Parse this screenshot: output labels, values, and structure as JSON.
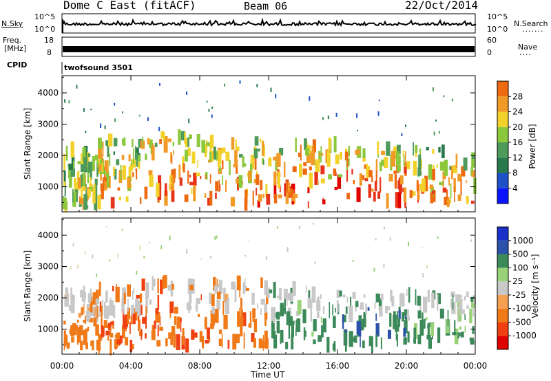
{
  "header": {
    "station": "Dome C East (fitACF)",
    "beam": "Beam 06",
    "date": "22/Oct/2014"
  },
  "status_panels": {
    "nsky_label": "N.Sky",
    "nsearch_label": "N.Search",
    "noise_ticks": [
      "10^5",
      "10^0"
    ],
    "freq_label_line1": "Freq.",
    "freq_label_line2": "[MHz]",
    "freq_ticks": [
      "18",
      "8"
    ],
    "nave_label": "Nave",
    "nave_ticks": [
      "60",
      "0"
    ],
    "cpid_label": "CPID",
    "cpid_text": "twofsound 3501"
  },
  "colors": {
    "power": [
      "#0a14ff",
      "#1e50c8",
      "#287a4c",
      "#4e9a5a",
      "#8cc83c",
      "#f2d22a",
      "#f29a28",
      "#ee6a10",
      "#e6341a",
      "#e00000"
    ],
    "velocity": [
      "#e00000",
      "#f04010",
      "#f07a18",
      "#f4a050",
      "#e8dcb8",
      "#c8c8c8",
      "#9ad27a",
      "#3c8a5a",
      "#2a52aa",
      "#1a30c8"
    ]
  },
  "chart_data": [
    {
      "type": "heatmap",
      "name": "power",
      "xlabel": "",
      "ylabel": "Slant Range [km]",
      "xlim_hours": [
        0,
        24
      ],
      "ylim": [
        200,
        4550
      ],
      "yticks": [
        1000,
        2000,
        3000,
        4000
      ],
      "colorbar": {
        "label": "Power [dB]",
        "range": [
          0,
          32
        ],
        "ticks": [
          "4",
          "8",
          "12",
          "16",
          "20",
          "24",
          "28"
        ]
      },
      "regions": [
        {
          "t": [
            0.0,
            2.0
          ],
          "r": [
            350,
            2200
          ],
          "level": 0.55
        },
        {
          "t": [
            2.0,
            4.5
          ],
          "r": [
            400,
            2500
          ],
          "level": 0.72
        },
        {
          "t": [
            4.5,
            8.5
          ],
          "r": [
            500,
            2700
          ],
          "level": 0.85
        },
        {
          "t": [
            8.5,
            12.0
          ],
          "r": [
            400,
            2500
          ],
          "level": 0.8
        },
        {
          "t": [
            12.0,
            16.0
          ],
          "r": [
            400,
            2400
          ],
          "level": 0.9
        },
        {
          "t": [
            16.0,
            20.0
          ],
          "r": [
            500,
            2300
          ],
          "level": 0.85
        },
        {
          "t": [
            20.0,
            24.0
          ],
          "r": [
            500,
            2300
          ],
          "level": 0.7
        }
      ]
    },
    {
      "type": "heatmap",
      "name": "velocity",
      "xlabel": "Time UT",
      "ylabel": "Slant Range [km]",
      "xlim_hours": [
        0,
        24
      ],
      "ylim": [
        200,
        4550
      ],
      "yticks": [
        1000,
        2000,
        3000,
        4000
      ],
      "xticks": [
        "00:00",
        "04:00",
        "08:00",
        "12:00",
        "16:00",
        "20:00",
        "00:00"
      ],
      "colorbar": {
        "label": "Velocity [m s⁻¹]",
        "ticks": [
          "1000",
          "500",
          "100",
          "25",
          "-25",
          "-100",
          "-500",
          "-1000"
        ]
      },
      "regions": [
        {
          "t": [
            0.0,
            2.0
          ],
          "r": [
            350,
            2200
          ],
          "v": -150
        },
        {
          "t": [
            2.0,
            4.5
          ],
          "r": [
            400,
            2400
          ],
          "v": -400
        },
        {
          "t": [
            4.5,
            8.5
          ],
          "r": [
            450,
            2600
          ],
          "v": -450
        },
        {
          "t": [
            8.5,
            12.0
          ],
          "r": [
            400,
            2500
          ],
          "v": -300
        },
        {
          "t": [
            12.0,
            16.0
          ],
          "r": [
            400,
            2300
          ],
          "v": 250
        },
        {
          "t": [
            16.0,
            20.0
          ],
          "r": [
            500,
            2200
          ],
          "v": 350
        },
        {
          "t": [
            20.0,
            24.0
          ],
          "r": [
            500,
            2200
          ],
          "v": 150
        }
      ]
    }
  ]
}
